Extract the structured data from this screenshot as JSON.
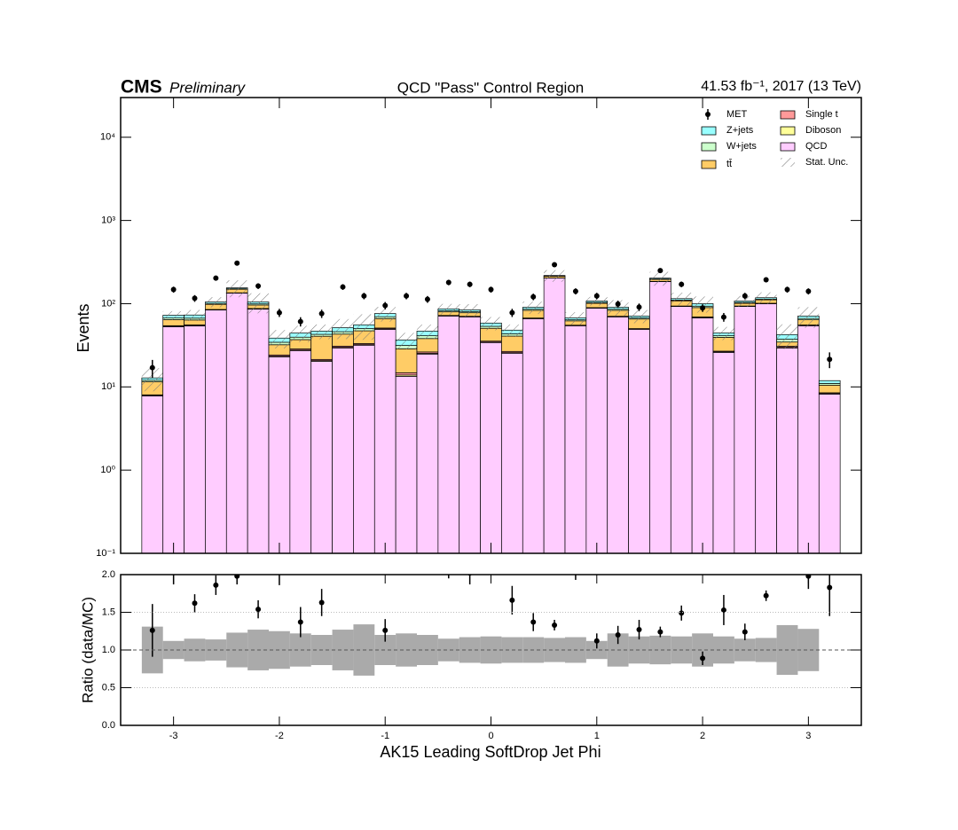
{
  "chart_data": {
    "type": "stacked_histogram",
    "experiment": "CMS",
    "status": "Preliminary",
    "title": "QCD \"Pass\" Control Region",
    "lumi": "41.53 fb⁻¹, 2017 (13 TeV)",
    "xlabel": "AK15 Leading SoftDrop Jet Phi",
    "ylabel": "Events",
    "log_y": true,
    "xlim": [
      -3.5,
      3.5
    ],
    "xticks": [
      -3,
      -2,
      -1,
      0,
      1,
      2,
      3
    ],
    "ylim": [
      0.1,
      30000
    ],
    "yticks": [
      {
        "value": 0.1,
        "label": "10⁻¹"
      },
      {
        "value": 1,
        "label": "10⁰"
      },
      {
        "value": 10,
        "label": "10¹"
      },
      {
        "value": 100,
        "label": "10²"
      },
      {
        "value": 1000,
        "label": "10³"
      },
      {
        "value": 10000,
        "label": "10⁴"
      }
    ],
    "bins": [
      -3.3,
      -3.1,
      -2.9,
      -2.7,
      -2.5,
      -2.3,
      -2.1,
      -1.9,
      -1.7,
      -1.5,
      -1.3,
      -1.1,
      -0.9,
      -0.7,
      -0.5,
      -0.3,
      -0.1,
      0.1,
      0.3,
      0.5,
      0.7,
      0.9,
      1.1,
      1.3,
      1.5,
      1.7,
      1.9,
      2.1,
      2.3,
      2.5,
      2.7,
      2.9,
      3.1,
      3.3
    ],
    "data": {
      "name": "MET",
      "color": "#000000",
      "values": [
        17,
        148,
        116,
        203,
        307,
        163,
        78,
        61,
        76,
        159,
        124,
        95,
        124,
        113,
        180,
        171,
        148,
        78,
        121,
        294,
        141,
        124,
        99,
        91,
        250,
        171,
        89,
        69,
        124,
        194,
        148,
        141,
        21.4
      ],
      "errors": [
        4.1,
        12.2,
        10.8,
        14.2,
        17.5,
        12.8,
        8.8,
        7.8,
        8.7,
        12.6,
        11.1,
        9.7,
        11.1,
        10.6,
        13.4,
        13.1,
        12.2,
        8.8,
        11,
        17.1,
        11.9,
        11.1,
        9.9,
        9.5,
        15.8,
        13.1,
        9.4,
        8.3,
        11.1,
        13.9,
        12.2,
        11.9,
        4.6
      ]
    },
    "series": [
      {
        "name": "Z+jets",
        "color": "#99ffff",
        "values": [
          0.8,
          5.4,
          6.1,
          4.4,
          3.9,
          5.5,
          4.2,
          4.8,
          4,
          5.4,
          5.5,
          6.4,
          5.1,
          5.6,
          4.5,
          4.2,
          5.1,
          4.7,
          4.7,
          2.8,
          3.4,
          4.2,
          4.7,
          3.6,
          5,
          4.4,
          6.6,
          3.3,
          4.2,
          4.4,
          5.1,
          4.5,
          0.9
        ]
      },
      {
        "name": "W+jets",
        "color": "#ccffcc",
        "values": [
          0.5,
          2.9,
          3.3,
          2.4,
          2.1,
          3,
          2.3,
          2.6,
          2.2,
          3,
          3,
          3.5,
          2.8,
          3.1,
          2.4,
          2.3,
          2.8,
          2.6,
          2.6,
          1.5,
          1.9,
          2.3,
          2.6,
          2,
          2.7,
          2.4,
          3.6,
          1.8,
          2.3,
          2.4,
          2.8,
          2.5,
          0.5
        ]
      },
      {
        "name": "tt̄",
        "color": "#ffcc66",
        "values": [
          3.5,
          9.9,
          8,
          13,
          14,
          9,
          7.9,
          8.4,
          19.2,
          12.2,
          14,
          15.2,
          13.9,
          11.8,
          7.4,
          7.2,
          15.1,
          14.1,
          16,
          10,
          7,
          11.5,
          12.6,
          15.2,
          10,
          14.4,
          20.5,
          12.5,
          7.4,
          10,
          3.8,
          8.5,
          2
        ]
      },
      {
        "name": "Single t",
        "color": "#ff9999",
        "values": [
          0.15,
          1,
          1.1,
          0.8,
          0.7,
          1,
          0.8,
          0.9,
          0.7,
          1,
          1,
          1.2,
          0.9,
          1,
          0.8,
          0.8,
          0.9,
          0.9,
          0.9,
          0.5,
          0.6,
          0.8,
          0.9,
          0.7,
          0.9,
          0.8,
          1.2,
          0.6,
          0.8,
          0.8,
          0.9,
          0.8,
          0.2
        ]
      },
      {
        "name": "Diboson",
        "color": "#ffff99",
        "values": [
          0.08,
          0.5,
          0.6,
          0.4,
          0.4,
          0.5,
          0.4,
          0.4,
          0.4,
          0.5,
          0.5,
          0.6,
          0.5,
          0.5,
          0.4,
          0.4,
          0.5,
          0.4,
          0.4,
          0.3,
          0.3,
          0.4,
          0.4,
          0.3,
          0.5,
          0.4,
          0.6,
          0.3,
          0.4,
          0.4,
          0.5,
          0.4,
          0.1
        ]
      },
      {
        "name": "QCD",
        "color": "#ffccff",
        "values": [
          7.8,
          52.9,
          54,
          84,
          134,
          86,
          23,
          27.3,
          20.3,
          29.4,
          31.7,
          49.2,
          13.4,
          24.8,
          71.1,
          69.4,
          34.1,
          25.4,
          66,
          203,
          54.3,
          88.5,
          69.4,
          49.2,
          184,
          92.6,
          67.5,
          26,
          92.6,
          100,
          29.4,
          54.3,
          8.2
        ]
      }
    ],
    "ratio": {
      "ylabel": "Ratio (data/MC)",
      "ylim": [
        0,
        2
      ],
      "yticks": [
        {
          "value": 0,
          "label": "0.0"
        },
        {
          "value": 0.5,
          "label": "0.5"
        },
        {
          "value": 1,
          "label": "1.0"
        },
        {
          "value": 1.5,
          "label": "1.5"
        },
        {
          "value": 2,
          "label": "2.0"
        }
      ],
      "values": [
        1.26,
        2.04,
        1.62,
        1.86,
        1.98,
        1.54,
        2.1,
        1.37,
        1.63,
        3.1,
        2.2,
        1.26,
        3.4,
        2.4,
        2.1,
        2.02,
        2.5,
        1.66,
        1.37,
        1.33,
        2.1,
        1.12,
        1.2,
        1.27,
        1.24,
        1.49,
        0.89,
        1.53,
        1.24,
        1.72,
        3.5,
        1.98,
        1.83
      ],
      "errors": [
        0.35,
        0.17,
        0.12,
        0.13,
        0.11,
        0.12,
        0.24,
        0.2,
        0.18,
        0.25,
        0.2,
        0.15,
        0.31,
        0.23,
        0.15,
        0.15,
        0.2,
        0.19,
        0.12,
        0.07,
        0.17,
        0.1,
        0.12,
        0.13,
        0.07,
        0.1,
        0.09,
        0.2,
        0.11,
        0.07,
        0.41,
        0.17,
        0.38
      ],
      "band": {
        "name": "Stat. Unc.",
        "color": "#aaaaaa",
        "values": [
          0.31,
          0.12,
          0.15,
          0.14,
          0.23,
          0.27,
          0.25,
          0.22,
          0.2,
          0.27,
          0.34,
          0.2,
          0.22,
          0.2,
          0.15,
          0.17,
          0.18,
          0.17,
          0.17,
          0.16,
          0.17,
          0.12,
          0.22,
          0.18,
          0.19,
          0.18,
          0.22,
          0.18,
          0.15,
          0.16,
          0.33,
          0.28,
          null
        ]
      }
    }
  }
}
